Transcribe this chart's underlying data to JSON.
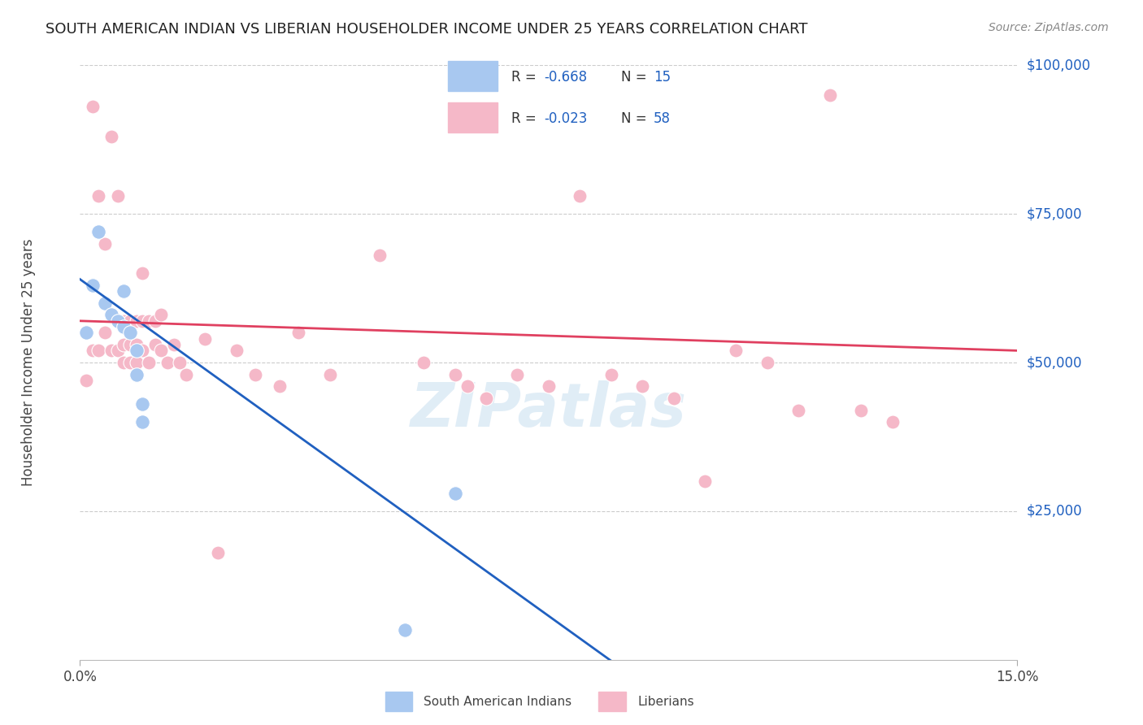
{
  "title": "SOUTH AMERICAN INDIAN VS LIBERIAN HOUSEHOLDER INCOME UNDER 25 YEARS CORRELATION CHART",
  "source": "Source: ZipAtlas.com",
  "ylabel": "Householder Income Under 25 years",
  "xlim": [
    0,
    0.15
  ],
  "ylim": [
    0,
    100000
  ],
  "ytick_labels": [
    "$25,000",
    "$50,000",
    "$75,000",
    "$100,000"
  ],
  "ytick_values": [
    25000,
    50000,
    75000,
    100000
  ],
  "blue_color": "#A8C8F0",
  "pink_color": "#F5B8C8",
  "line_blue": "#2060C0",
  "line_pink": "#E04060",
  "watermark": "ZIPatlas",
  "blue_points_x": [
    0.001,
    0.002,
    0.003,
    0.004,
    0.005,
    0.006,
    0.007,
    0.007,
    0.008,
    0.009,
    0.009,
    0.01,
    0.01,
    0.052,
    0.06
  ],
  "blue_points_y": [
    55000,
    63000,
    72000,
    60000,
    58000,
    57000,
    62000,
    56000,
    55000,
    52000,
    48000,
    43000,
    40000,
    5000,
    28000
  ],
  "pink_points_x": [
    0.001,
    0.002,
    0.002,
    0.003,
    0.003,
    0.004,
    0.004,
    0.005,
    0.005,
    0.006,
    0.006,
    0.007,
    0.007,
    0.007,
    0.008,
    0.008,
    0.008,
    0.009,
    0.009,
    0.009,
    0.01,
    0.01,
    0.01,
    0.011,
    0.011,
    0.012,
    0.012,
    0.013,
    0.013,
    0.014,
    0.015,
    0.016,
    0.017,
    0.02,
    0.022,
    0.025,
    0.028,
    0.032,
    0.035,
    0.04,
    0.048,
    0.055,
    0.06,
    0.062,
    0.065,
    0.07,
    0.075,
    0.08,
    0.085,
    0.09,
    0.095,
    0.1,
    0.105,
    0.11,
    0.115,
    0.12,
    0.125,
    0.13
  ],
  "pink_points_y": [
    47000,
    93000,
    52000,
    78000,
    52000,
    70000,
    55000,
    88000,
    52000,
    78000,
    52000,
    57000,
    53000,
    50000,
    57000,
    53000,
    50000,
    57000,
    53000,
    50000,
    65000,
    57000,
    52000,
    57000,
    50000,
    57000,
    53000,
    58000,
    52000,
    50000,
    53000,
    50000,
    48000,
    54000,
    18000,
    52000,
    48000,
    46000,
    55000,
    48000,
    68000,
    50000,
    48000,
    46000,
    44000,
    48000,
    46000,
    78000,
    48000,
    46000,
    44000,
    30000,
    52000,
    50000,
    42000,
    95000,
    42000,
    40000
  ]
}
